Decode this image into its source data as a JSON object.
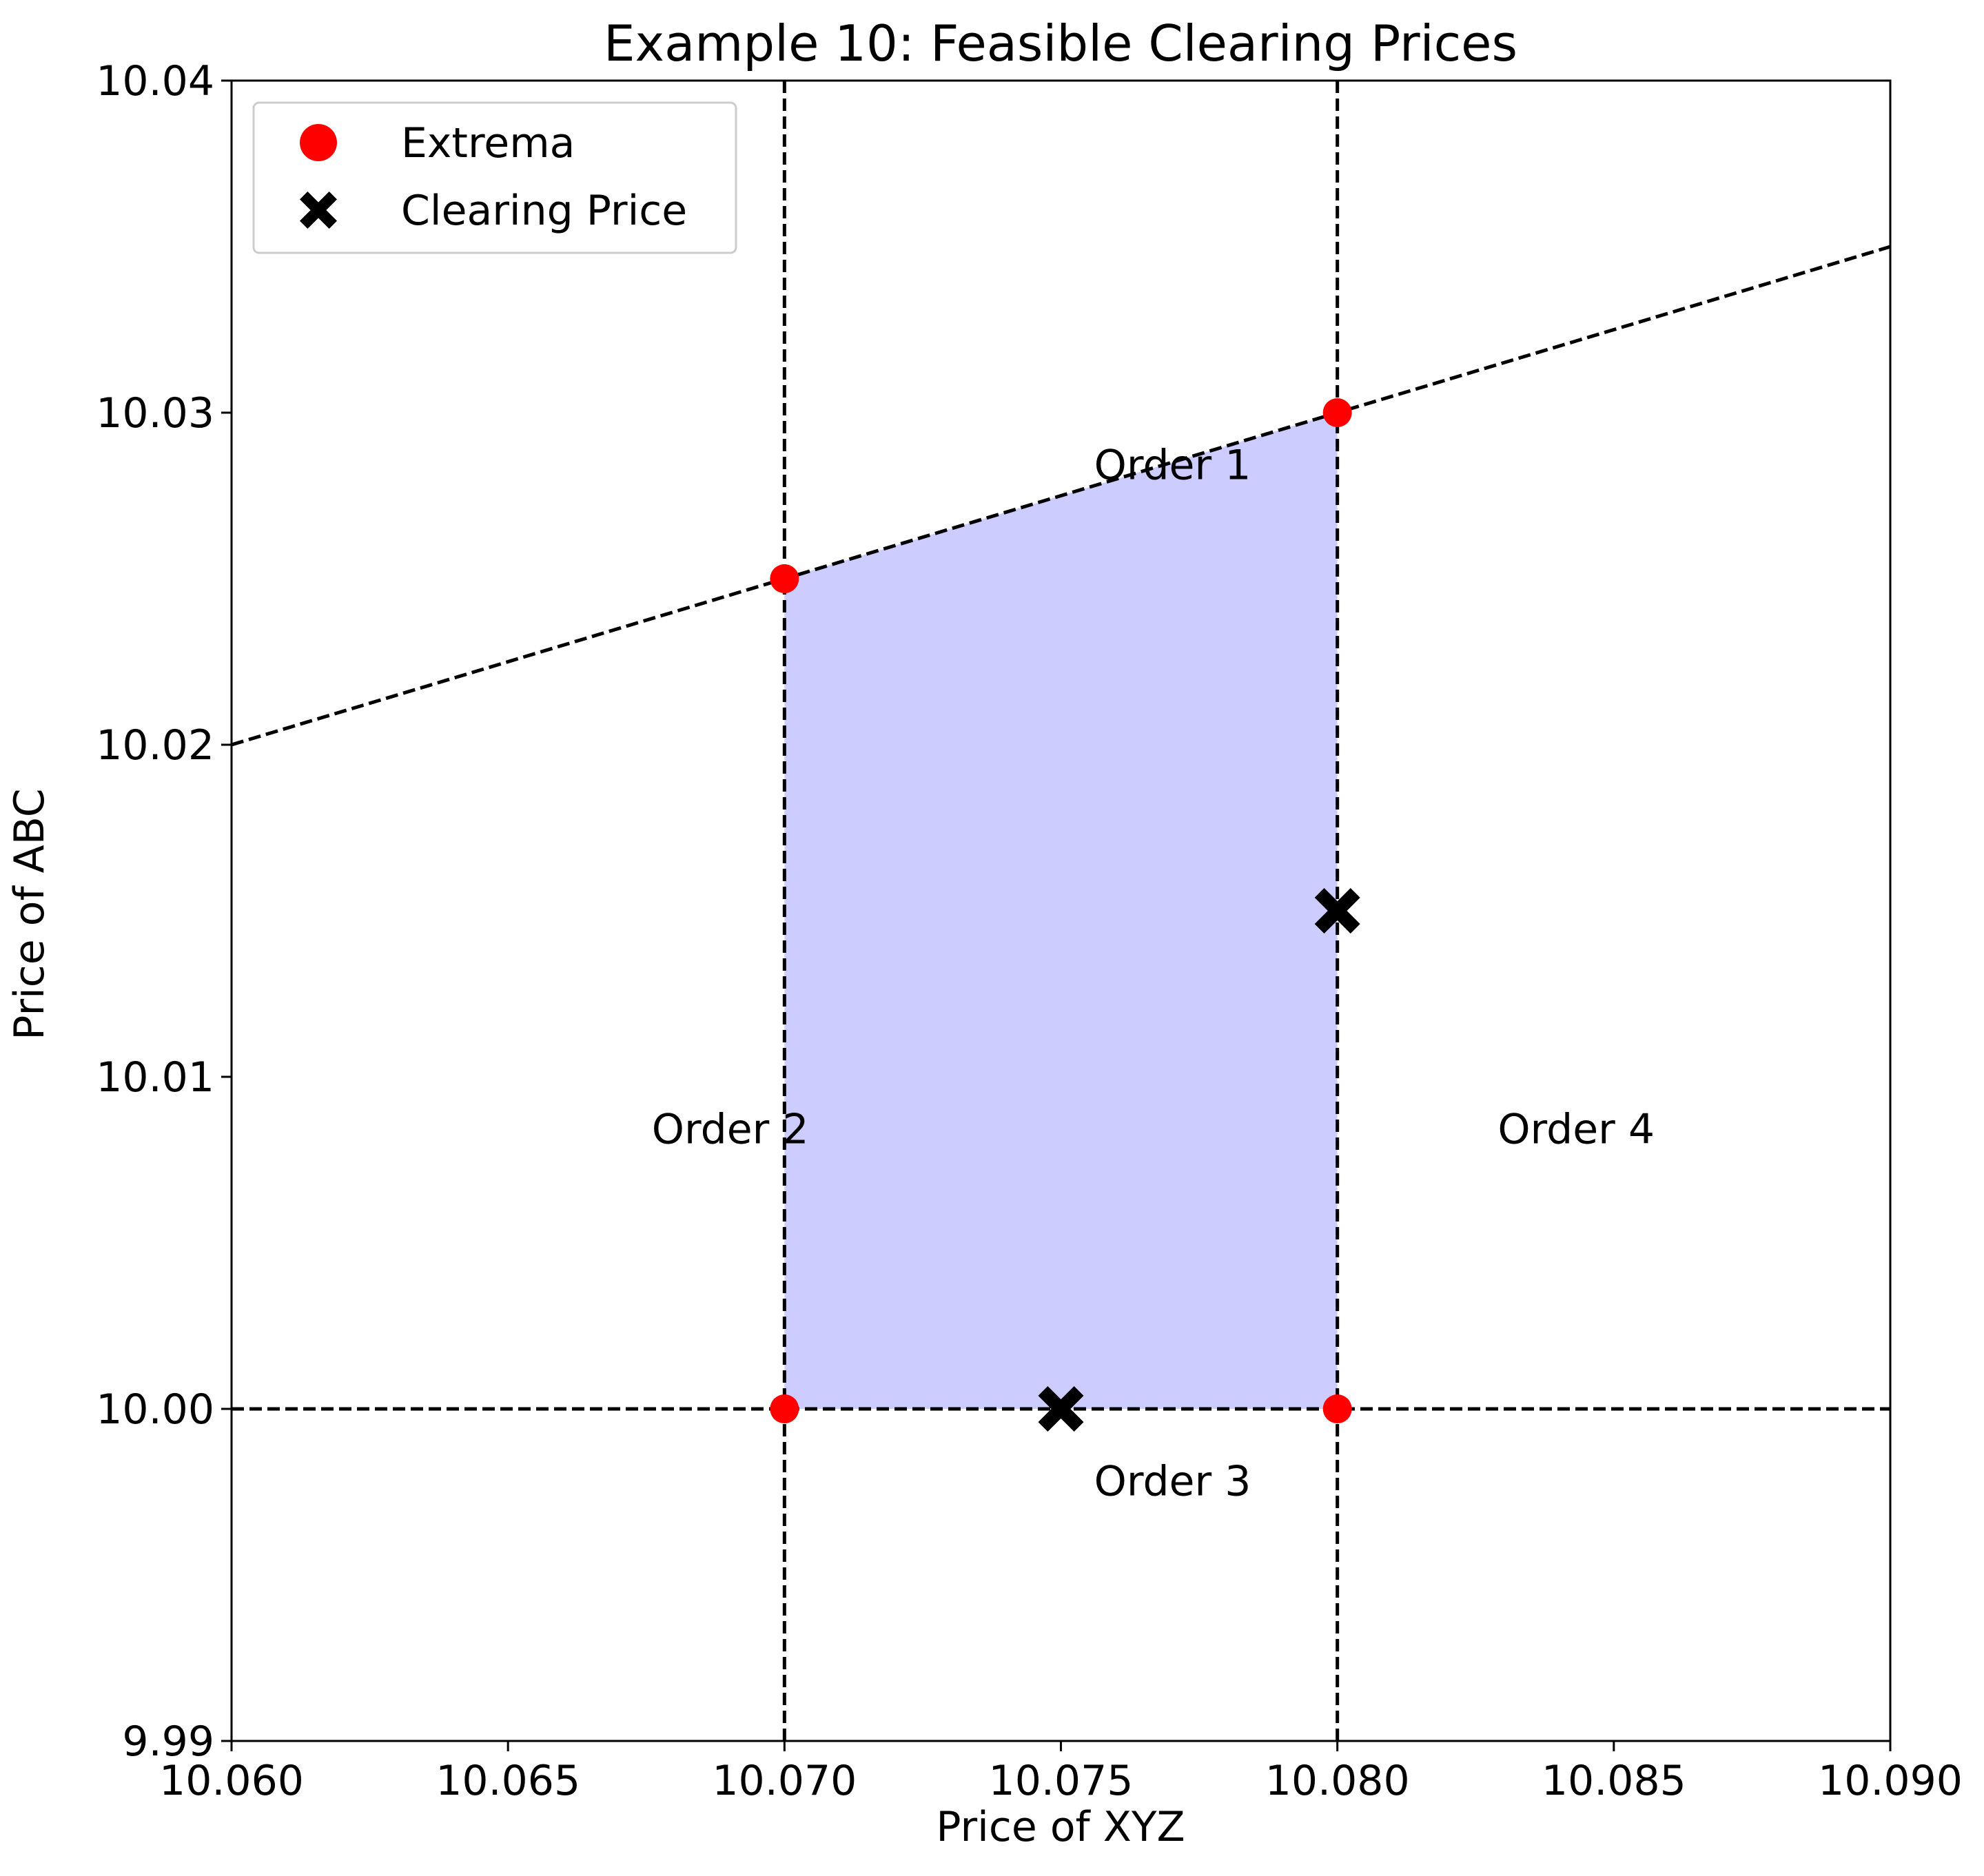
{
  "chart_data": {
    "type": "scatter",
    "title": "Example 10: Feasible Clearing Prices",
    "xlabel": "Price of XYZ",
    "ylabel": "Price of ABC",
    "xlim": [
      10.06,
      10.09
    ],
    "ylim": [
      9.99,
      10.04
    ],
    "xticks": [
      10.06,
      10.065,
      10.07,
      10.075,
      10.08,
      10.085,
      10.09
    ],
    "xtick_labels": [
      "10.060",
      "10.065",
      "10.070",
      "10.075",
      "10.080",
      "10.085",
      "10.090"
    ],
    "yticks": [
      9.99,
      10.0,
      10.01,
      10.02,
      10.03,
      10.04
    ],
    "ytick_labels": [
      "9.99",
      "10.00",
      "10.01",
      "10.02",
      "10.03",
      "10.04"
    ],
    "grid": false,
    "legend_position": "top-left",
    "constraint_lines": [
      {
        "label": "Order 1",
        "type": "line",
        "points": [
          [
            10.06,
            10.02
          ],
          [
            10.09,
            10.035
          ]
        ],
        "label_pos": [
          10.0756,
          10.028
        ]
      },
      {
        "label": "Order 2",
        "type": "vertical",
        "x": 10.07,
        "label_pos": [
          10.0676,
          10.008
        ]
      },
      {
        "label": "Order 3",
        "type": "horizontal",
        "y": 10.0,
        "label_pos": [
          10.0756,
          9.9974
        ]
      },
      {
        "label": "Order 4",
        "type": "vertical",
        "x": 10.08,
        "label_pos": [
          10.0829,
          10.008
        ]
      }
    ],
    "feasible_region": {
      "color": "#ccccff",
      "polygon": [
        [
          10.07,
          10.0
        ],
        [
          10.08,
          10.0
        ],
        [
          10.08,
          10.03
        ],
        [
          10.07,
          10.025
        ]
      ]
    },
    "series": [
      {
        "name": "Extrema",
        "marker": "circle",
        "color": "#ff0000",
        "x": [
          10.07,
          10.08,
          10.07,
          10.08
        ],
        "y": [
          10.025,
          10.03,
          10.0,
          10.0
        ]
      },
      {
        "name": "Clearing Price",
        "marker": "x-filled",
        "color": "#000000",
        "x": [
          10.08,
          10.075
        ],
        "y": [
          10.015,
          10.0
        ]
      }
    ]
  }
}
